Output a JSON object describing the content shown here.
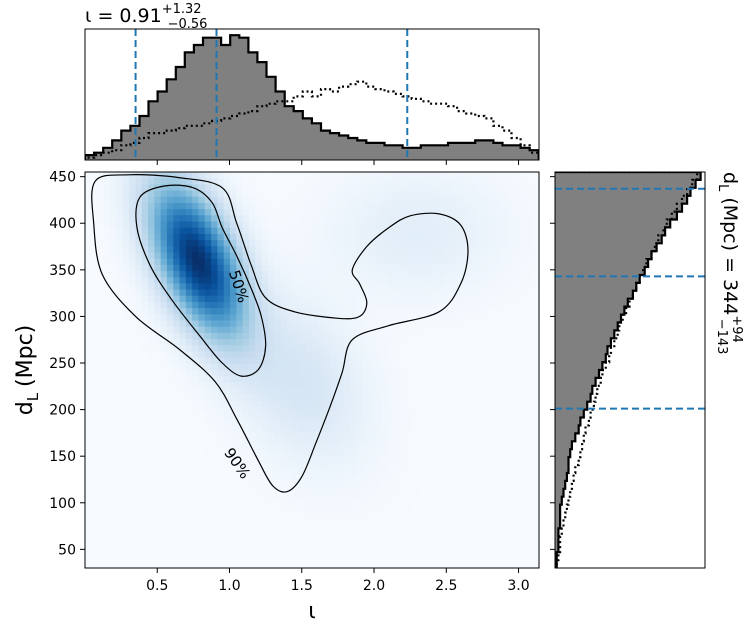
{
  "chart_data": [
    {
      "type": "heatmap",
      "panel": "joint",
      "xlabel": "ι",
      "ylabel_main": "d",
      "ylabel_sub": "L",
      "ylabel_unit": "(Mpc)",
      "xlim": [
        0.0,
        3.14159
      ],
      "ylim": [
        30,
        455
      ],
      "xticks": [
        0.5,
        1.0,
        1.5,
        2.0,
        2.5,
        3.0
      ],
      "xtick_labels": [
        "0.5",
        "1.0",
        "1.5",
        "2.0",
        "2.5",
        "3.0"
      ],
      "yticks": [
        50,
        100,
        150,
        200,
        250,
        300,
        350,
        400,
        450
      ],
      "ytick_labels": [
        "50",
        "100",
        "150",
        "200",
        "250",
        "300",
        "350",
        "400",
        "450"
      ],
      "colormap": "Blues",
      "density_peaks": [
        {
          "x": 0.78,
          "y": 360,
          "sx": 0.22,
          "sy": 55,
          "rho": -0.55,
          "weight": 1.0
        },
        {
          "x": 2.3,
          "y": 390,
          "sx": 0.4,
          "sy": 45,
          "rho": 0.0,
          "weight": 0.07
        },
        {
          "x": 1.5,
          "y": 230,
          "sx": 0.3,
          "sy": 60,
          "rho": -0.3,
          "weight": 0.12
        }
      ],
      "contours": [
        {
          "label": "50%",
          "label_at": {
            "x": 1.06,
            "y": 332,
            "angle_deg": 72
          },
          "points": [
            [
              0.38,
              428
            ],
            [
              0.55,
              440
            ],
            [
              0.75,
              438
            ],
            [
              0.88,
              422
            ],
            [
              0.95,
              395
            ],
            [
              1.05,
              365
            ],
            [
              1.15,
              330
            ],
            [
              1.22,
              300
            ],
            [
              1.25,
              268
            ],
            [
              1.2,
              243
            ],
            [
              1.08,
              236
            ],
            [
              0.95,
              250
            ],
            [
              0.8,
              278
            ],
            [
              0.6,
              318
            ],
            [
              0.45,
              355
            ],
            [
              0.36,
              395
            ]
          ]
        },
        {
          "label": "90%",
          "label_at": {
            "x": 1.05,
            "y": 142,
            "angle_deg": 55
          },
          "points": [
            [
              0.07,
              445
            ],
            [
              0.3,
              452
            ],
            [
              0.65,
              449
            ],
            [
              0.95,
              438
            ],
            [
              1.05,
              400
            ],
            [
              1.15,
              355
            ],
            [
              1.25,
              320
            ],
            [
              1.45,
              305
            ],
            [
              1.75,
              298
            ],
            [
              1.9,
              300
            ],
            [
              1.95,
              315
            ],
            [
              1.9,
              335
            ],
            [
              1.85,
              350
            ],
            [
              1.95,
              375
            ],
            [
              2.1,
              395
            ],
            [
              2.25,
              408
            ],
            [
              2.45,
              410
            ],
            [
              2.6,
              398
            ],
            [
              2.65,
              370
            ],
            [
              2.6,
              335
            ],
            [
              2.45,
              305
            ],
            [
              2.1,
              290
            ],
            [
              1.85,
              275
            ],
            [
              1.78,
              240
            ],
            [
              1.7,
              205
            ],
            [
              1.6,
              165
            ],
            [
              1.5,
              128
            ],
            [
              1.4,
              112
            ],
            [
              1.3,
              118
            ],
            [
              1.2,
              145
            ],
            [
              1.05,
              190
            ],
            [
              0.9,
              230
            ],
            [
              0.65,
              265
            ],
            [
              0.35,
              300
            ],
            [
              0.12,
              345
            ],
            [
              0.06,
              400
            ]
          ]
        }
      ]
    },
    {
      "type": "bar",
      "panel": "top-marginal",
      "title_main": "ι = 0.91",
      "title_sup": "+1.32",
      "title_sub": "−0.56",
      "xlim": [
        0.0,
        3.14159
      ],
      "bin_start": 0.0,
      "bin_width": 0.0628,
      "posterior_counts": [
        2,
        3,
        5,
        8,
        12,
        14,
        18,
        24,
        28,
        33,
        38,
        44,
        47,
        50,
        50,
        47,
        51,
        50,
        44,
        40,
        34,
        28,
        22,
        20,
        17,
        15,
        12,
        11,
        10,
        9,
        8,
        7,
        7,
        6,
        6,
        5,
        5,
        6,
        6,
        6,
        7,
        7,
        7,
        8,
        8,
        7,
        6,
        6,
        5,
        4
      ],
      "prior_counts": [
        1,
        2,
        3,
        4,
        6,
        7,
        9,
        11,
        11,
        12,
        13,
        14,
        14,
        15,
        16,
        17,
        18,
        19,
        20,
        22,
        23,
        24,
        24,
        26,
        28,
        26,
        29,
        28,
        30,
        31,
        32,
        30,
        29,
        28,
        27,
        26,
        25,
        24,
        23,
        23,
        22,
        20,
        19,
        18,
        17,
        14,
        12,
        9,
        6,
        3
      ],
      "credible_lines": [
        0.35,
        0.91,
        2.23
      ],
      "posterior_fill": "#808080",
      "line_color": "#1f77b4"
    },
    {
      "type": "bar",
      "panel": "right-marginal",
      "title_main": "d",
      "title_sub_letter": "L",
      "title_unit": "(Mpc) = 344",
      "title_sup": "+94",
      "title_sub": "−143",
      "ylim": [
        30,
        455
      ],
      "bin_start": 30,
      "bin_width": 8.5,
      "posterior_counts": [
        1,
        1,
        2,
        2,
        2,
        3,
        3,
        3,
        4,
        5,
        6,
        7,
        8,
        8,
        9,
        10,
        12,
        14,
        15,
        17,
        19,
        21,
        22,
        24,
        26,
        28,
        30,
        31,
        33,
        35,
        37,
        39,
        41,
        43,
        46,
        48,
        50,
        53,
        55,
        57,
        60,
        63,
        65,
        68,
        72,
        75,
        78,
        80,
        83,
        86
      ],
      "prior_counts": [
        1,
        2,
        3,
        3,
        4,
        5,
        6,
        7,
        8,
        9,
        10,
        11,
        12,
        14,
        15,
        16,
        17,
        18,
        20,
        21,
        23,
        24,
        25,
        27,
        28,
        30,
        32,
        33,
        35,
        37,
        38,
        40,
        42,
        44,
        46,
        48,
        50,
        52,
        54,
        57,
        59,
        61,
        64,
        66,
        69,
        72,
        75,
        78,
        81,
        84
      ],
      "credible_lines": [
        201,
        343,
        437
      ],
      "posterior_fill": "#808080",
      "line_color": "#1f77b4"
    }
  ]
}
